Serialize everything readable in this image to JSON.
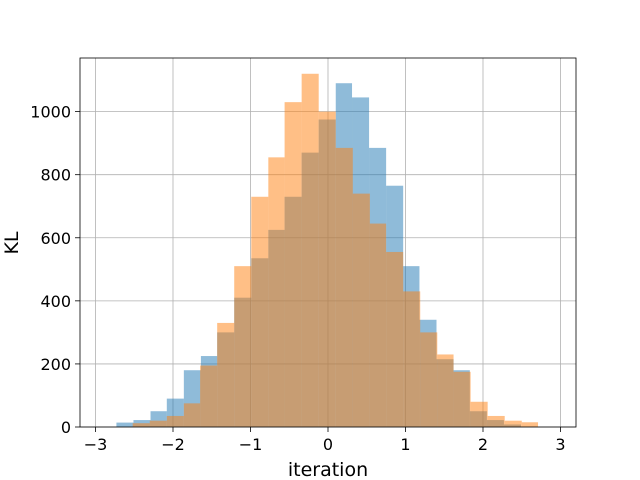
{
  "chart_data": {
    "type": "bar",
    "subtype": "overlapping-histogram",
    "title": "",
    "xlabel": "iteration",
    "ylabel": "KL",
    "xlim": [
      -3.2,
      3.2
    ],
    "ylim": [
      0,
      1170
    ],
    "xticks": [
      -3,
      -2,
      -1,
      0,
      1,
      2,
      3
    ],
    "xtick_labels": [
      "−3",
      "−2",
      "−1",
      "0",
      "1",
      "2",
      "3"
    ],
    "yticks": [
      0,
      200,
      400,
      600,
      800,
      1000
    ],
    "ytick_labels": [
      "0",
      "200",
      "400",
      "600",
      "800",
      "1000"
    ],
    "grid": true,
    "legend": "none",
    "series": [
      {
        "color": "#1f77b4",
        "alpha": 0.5,
        "bins": [
          {
            "x0": -2.73,
            "x1": -2.51,
            "value": 14
          },
          {
            "x0": -2.51,
            "x1": -2.29,
            "value": 22
          },
          {
            "x0": -2.29,
            "x1": -2.08,
            "value": 50
          },
          {
            "x0": -2.08,
            "x1": -1.86,
            "value": 90
          },
          {
            "x0": -1.86,
            "x1": -1.64,
            "value": 180
          },
          {
            "x0": -1.64,
            "x1": -1.43,
            "value": 225
          },
          {
            "x0": -1.43,
            "x1": -1.21,
            "value": 300
          },
          {
            "x0": -1.21,
            "x1": -0.99,
            "value": 410
          },
          {
            "x0": -0.99,
            "x1": -0.77,
            "value": 535
          },
          {
            "x0": -0.77,
            "x1": -0.56,
            "value": 625
          },
          {
            "x0": -0.56,
            "x1": -0.34,
            "value": 730
          },
          {
            "x0": -0.34,
            "x1": -0.12,
            "value": 870
          },
          {
            "x0": -0.12,
            "x1": 0.1,
            "value": 975
          },
          {
            "x0": 0.1,
            "x1": 0.31,
            "value": 1090
          },
          {
            "x0": 0.31,
            "x1": 0.53,
            "value": 1045
          },
          {
            "x0": 0.53,
            "x1": 0.75,
            "value": 885
          },
          {
            "x0": 0.75,
            "x1": 0.97,
            "value": 765
          },
          {
            "x0": 0.97,
            "x1": 1.18,
            "value": 510
          },
          {
            "x0": 1.18,
            "x1": 1.4,
            "value": 340
          },
          {
            "x0": 1.4,
            "x1": 1.62,
            "value": 215
          },
          {
            "x0": 1.62,
            "x1": 1.83,
            "value": 180
          },
          {
            "x0": 1.83,
            "x1": 2.05,
            "value": 50
          },
          {
            "x0": 2.05,
            "x1": 2.27,
            "value": 22
          },
          {
            "x0": 2.27,
            "x1": 2.49,
            "value": 8
          }
        ]
      },
      {
        "color": "#ff7f0e",
        "alpha": 0.5,
        "bins": [
          {
            "x0": -2.52,
            "x1": -2.3,
            "value": 12
          },
          {
            "x0": -2.3,
            "x1": -2.08,
            "value": 20
          },
          {
            "x0": -2.08,
            "x1": -1.86,
            "value": 35
          },
          {
            "x0": -1.86,
            "x1": -1.65,
            "value": 75
          },
          {
            "x0": -1.65,
            "x1": -1.43,
            "value": 195
          },
          {
            "x0": -1.43,
            "x1": -1.21,
            "value": 330
          },
          {
            "x0": -1.21,
            "x1": -0.99,
            "value": 510
          },
          {
            "x0": -0.99,
            "x1": -0.77,
            "value": 730
          },
          {
            "x0": -0.77,
            "x1": -0.56,
            "value": 855
          },
          {
            "x0": -0.56,
            "x1": -0.34,
            "value": 1030
          },
          {
            "x0": -0.34,
            "x1": -0.12,
            "value": 1120
          },
          {
            "x0": -0.12,
            "x1": 0.1,
            "value": 1000
          },
          {
            "x0": 0.1,
            "x1": 0.32,
            "value": 885
          },
          {
            "x0": 0.32,
            "x1": 0.54,
            "value": 740
          },
          {
            "x0": 0.54,
            "x1": 0.75,
            "value": 645
          },
          {
            "x0": 0.75,
            "x1": 0.97,
            "value": 555
          },
          {
            "x0": 0.97,
            "x1": 1.19,
            "value": 430
          },
          {
            "x0": 1.19,
            "x1": 1.41,
            "value": 300
          },
          {
            "x0": 1.41,
            "x1": 1.62,
            "value": 230
          },
          {
            "x0": 1.62,
            "x1": 1.84,
            "value": 175
          },
          {
            "x0": 1.84,
            "x1": 2.06,
            "value": 80
          },
          {
            "x0": 2.06,
            "x1": 2.28,
            "value": 35
          },
          {
            "x0": 2.28,
            "x1": 2.5,
            "value": 20
          },
          {
            "x0": 2.5,
            "x1": 2.71,
            "value": 15
          }
        ]
      }
    ]
  }
}
